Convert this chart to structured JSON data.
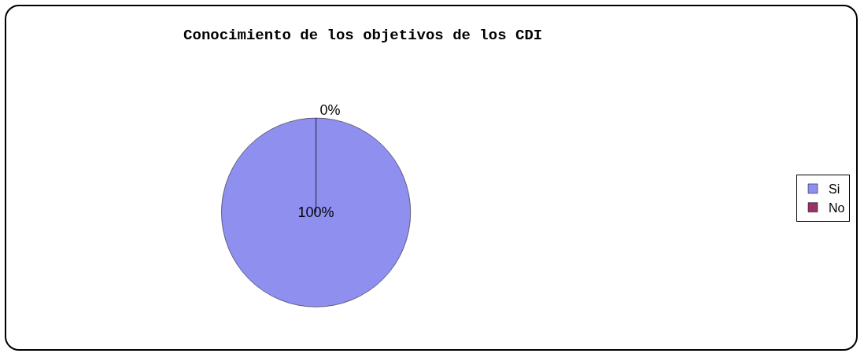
{
  "chart_data": {
    "type": "pie",
    "title": "Conocimiento de los objetivos de los CDI",
    "categories": [
      "Si",
      "No"
    ],
    "values": [
      100,
      0
    ],
    "colors": [
      "#8f8ff0",
      "#993366"
    ],
    "value_labels": [
      "100%",
      "0%"
    ],
    "legend": "right"
  }
}
